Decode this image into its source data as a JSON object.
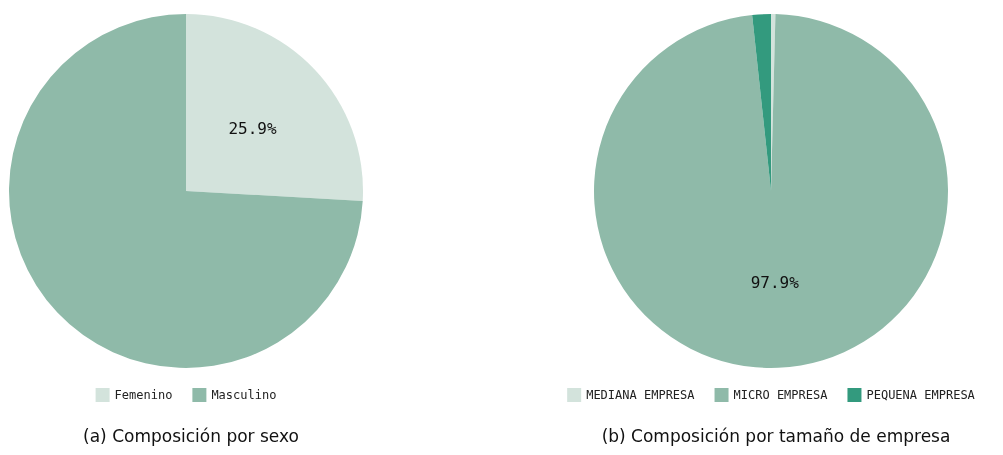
{
  "chart_data": [
    {
      "type": "pie",
      "title": "(a) Composición por sexo",
      "categories": [
        "Femenino",
        "Masculino"
      ],
      "values": [
        25.9,
        74.1
      ],
      "colors": [
        "#d3e3dc",
        "#8fbaa9"
      ],
      "value_labels": [
        "25.9%",
        null
      ],
      "legend": "bottom"
    },
    {
      "type": "pie",
      "title": "(b) Composición por tamaño de empresa",
      "categories": [
        "MEDIANA EMPRESA",
        "MICRO EMPRESA",
        "PEQUENA EMPRESA"
      ],
      "values": [
        0.4,
        97.9,
        1.7
      ],
      "colors": [
        "#d3e3dc",
        "#8fbaa9",
        "#339a7e"
      ],
      "value_labels": [
        null,
        "97.9%",
        null
      ],
      "legend": "bottom"
    }
  ]
}
